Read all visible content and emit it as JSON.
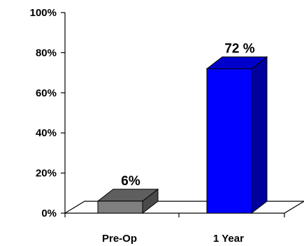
{
  "chart_data": {
    "type": "bar",
    "categories": [
      "Pre-Op",
      "1 Year"
    ],
    "values": [
      6,
      72
    ],
    "value_labels": [
      "6%",
      "72 %"
    ],
    "ylim": [
      0,
      100
    ],
    "yticks": [
      0,
      20,
      40,
      60,
      80,
      100
    ],
    "ytick_labels": [
      "0%",
      "20%",
      "40%",
      "60%",
      "80%",
      "100%"
    ],
    "title": "",
    "xlabel": "",
    "ylabel": "",
    "grid": false,
    "legend": "none",
    "style": "3d",
    "colors": {
      "bars": [
        "#7f7f7f",
        "#0000ff"
      ],
      "bar_tops": [
        "#5f5f5f",
        "#0000cc"
      ],
      "bar_sides": [
        "#4a4a4a",
        "#00009e"
      ],
      "floor": "#ffffff",
      "axis": "#000000"
    }
  }
}
